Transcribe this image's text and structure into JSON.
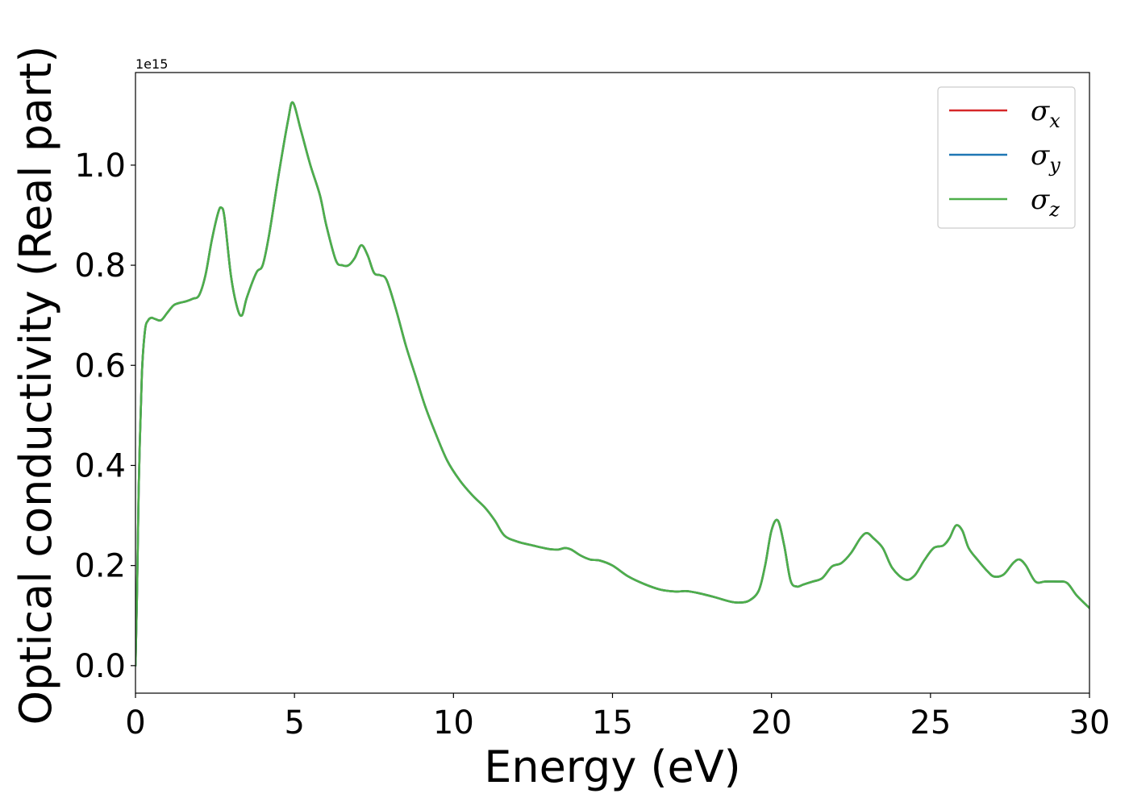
{
  "chart_data": {
    "type": "line",
    "xlabel": "Energy (eV)",
    "ylabel": "Optical conductivity (Real part)",
    "y_offset_label": "1e15",
    "y_scale_factor": 1000000000000000.0,
    "xlim": [
      0,
      30
    ],
    "ylim": [
      -0.055,
      1.185
    ],
    "xticks": [
      0,
      5,
      10,
      15,
      20,
      25,
      30
    ],
    "xtick_labels": [
      "0",
      "5",
      "10",
      "15",
      "20",
      "25",
      "30"
    ],
    "yticks": [
      0.0,
      0.2,
      0.4,
      0.6,
      0.8,
      1.0
    ],
    "ytick_labels": [
      "0.0",
      "0.2",
      "0.4",
      "0.6",
      "0.8",
      "1.0"
    ],
    "grid": false,
    "legend_position": "top-right",
    "x": [
      0,
      0.05,
      0.1,
      0.2,
      0.3,
      0.4,
      0.5,
      0.6,
      0.8,
      1.0,
      1.2,
      1.4,
      1.6,
      1.8,
      2.0,
      2.2,
      2.4,
      2.6,
      2.7,
      2.8,
      3.0,
      3.2,
      3.35,
      3.5,
      3.8,
      4.0,
      4.2,
      4.5,
      4.8,
      4.95,
      5.2,
      5.5,
      5.8,
      6.0,
      6.3,
      6.5,
      6.7,
      6.9,
      7.1,
      7.3,
      7.5,
      7.7,
      7.9,
      8.2,
      8.5,
      8.8,
      9.1,
      9.4,
      9.8,
      10.2,
      10.6,
      11.0,
      11.3,
      11.6,
      12.0,
      12.5,
      13.0,
      13.3,
      13.5,
      13.7,
      14.0,
      14.3,
      14.6,
      15.0,
      15.5,
      16.0,
      16.5,
      17.0,
      17.3,
      17.7,
      18.2,
      18.7,
      19.0,
      19.3,
      19.6,
      19.8,
      20.0,
      20.2,
      20.4,
      20.6,
      20.8,
      21.0,
      21.3,
      21.6,
      21.9,
      22.2,
      22.5,
      22.8,
      23.0,
      23.2,
      23.5,
      23.8,
      24.2,
      24.5,
      24.8,
      25.1,
      25.4,
      25.6,
      25.8,
      26.0,
      26.2,
      26.5,
      26.8,
      27.0,
      27.3,
      27.6,
      27.8,
      28.0,
      28.3,
      28.6,
      29.0,
      29.3,
      29.6,
      30.0
    ],
    "series": [
      {
        "name": "σx",
        "label_base": "σ",
        "label_sub": "x",
        "color": "#d62728",
        "values": [
          0.0,
          0.15,
          0.35,
          0.58,
          0.67,
          0.69,
          0.695,
          0.693,
          0.69,
          0.705,
          0.72,
          0.725,
          0.728,
          0.733,
          0.74,
          0.78,
          0.85,
          0.905,
          0.915,
          0.895,
          0.78,
          0.715,
          0.7,
          0.735,
          0.785,
          0.8,
          0.86,
          0.98,
          1.09,
          1.125,
          1.07,
          1.0,
          0.94,
          0.88,
          0.81,
          0.8,
          0.8,
          0.815,
          0.84,
          0.82,
          0.785,
          0.78,
          0.77,
          0.71,
          0.64,
          0.58,
          0.52,
          0.47,
          0.41,
          0.37,
          0.34,
          0.315,
          0.29,
          0.26,
          0.248,
          0.24,
          0.233,
          0.232,
          0.235,
          0.232,
          0.22,
          0.212,
          0.21,
          0.2,
          0.178,
          0.163,
          0.152,
          0.148,
          0.149,
          0.145,
          0.137,
          0.128,
          0.126,
          0.13,
          0.15,
          0.2,
          0.27,
          0.29,
          0.24,
          0.17,
          0.158,
          0.162,
          0.168,
          0.175,
          0.198,
          0.205,
          0.225,
          0.255,
          0.265,
          0.255,
          0.235,
          0.195,
          0.172,
          0.18,
          0.21,
          0.235,
          0.24,
          0.255,
          0.28,
          0.27,
          0.235,
          0.21,
          0.188,
          0.178,
          0.182,
          0.205,
          0.212,
          0.2,
          0.168,
          0.168,
          0.168,
          0.165,
          0.14,
          0.115
        ]
      },
      {
        "name": "σy",
        "label_base": "σ",
        "label_sub": "y",
        "color": "#1f77b4",
        "values": [
          0.0,
          0.15,
          0.35,
          0.58,
          0.67,
          0.69,
          0.695,
          0.693,
          0.69,
          0.705,
          0.72,
          0.725,
          0.728,
          0.733,
          0.74,
          0.78,
          0.85,
          0.905,
          0.915,
          0.895,
          0.78,
          0.715,
          0.7,
          0.735,
          0.785,
          0.8,
          0.86,
          0.98,
          1.09,
          1.125,
          1.07,
          1.0,
          0.94,
          0.88,
          0.81,
          0.8,
          0.8,
          0.815,
          0.84,
          0.82,
          0.785,
          0.78,
          0.77,
          0.71,
          0.64,
          0.58,
          0.52,
          0.47,
          0.41,
          0.37,
          0.34,
          0.315,
          0.29,
          0.26,
          0.248,
          0.24,
          0.233,
          0.232,
          0.235,
          0.232,
          0.22,
          0.212,
          0.21,
          0.2,
          0.178,
          0.163,
          0.152,
          0.148,
          0.149,
          0.145,
          0.137,
          0.128,
          0.126,
          0.13,
          0.15,
          0.2,
          0.27,
          0.29,
          0.24,
          0.17,
          0.158,
          0.162,
          0.168,
          0.175,
          0.198,
          0.205,
          0.225,
          0.255,
          0.265,
          0.255,
          0.235,
          0.195,
          0.172,
          0.18,
          0.21,
          0.235,
          0.24,
          0.255,
          0.28,
          0.27,
          0.235,
          0.21,
          0.188,
          0.178,
          0.182,
          0.205,
          0.212,
          0.2,
          0.168,
          0.168,
          0.168,
          0.165,
          0.14,
          0.115
        ]
      },
      {
        "name": "σz",
        "label_base": "σ",
        "label_sub": "z",
        "color": "#4daf4a",
        "values": [
          0.0,
          0.15,
          0.35,
          0.58,
          0.67,
          0.69,
          0.695,
          0.693,
          0.69,
          0.705,
          0.72,
          0.725,
          0.728,
          0.733,
          0.74,
          0.78,
          0.85,
          0.905,
          0.915,
          0.895,
          0.78,
          0.715,
          0.7,
          0.735,
          0.785,
          0.8,
          0.86,
          0.98,
          1.09,
          1.125,
          1.07,
          1.0,
          0.94,
          0.88,
          0.81,
          0.8,
          0.8,
          0.815,
          0.84,
          0.82,
          0.785,
          0.78,
          0.77,
          0.71,
          0.64,
          0.58,
          0.52,
          0.47,
          0.41,
          0.37,
          0.34,
          0.315,
          0.29,
          0.26,
          0.248,
          0.24,
          0.233,
          0.232,
          0.235,
          0.232,
          0.22,
          0.212,
          0.21,
          0.2,
          0.178,
          0.163,
          0.152,
          0.148,
          0.149,
          0.145,
          0.137,
          0.128,
          0.126,
          0.13,
          0.15,
          0.2,
          0.27,
          0.29,
          0.24,
          0.17,
          0.158,
          0.162,
          0.168,
          0.175,
          0.198,
          0.205,
          0.225,
          0.255,
          0.265,
          0.255,
          0.235,
          0.195,
          0.172,
          0.18,
          0.21,
          0.235,
          0.24,
          0.255,
          0.28,
          0.27,
          0.235,
          0.21,
          0.188,
          0.178,
          0.182,
          0.205,
          0.212,
          0.2,
          0.168,
          0.168,
          0.168,
          0.165,
          0.14,
          0.115
        ]
      }
    ]
  }
}
